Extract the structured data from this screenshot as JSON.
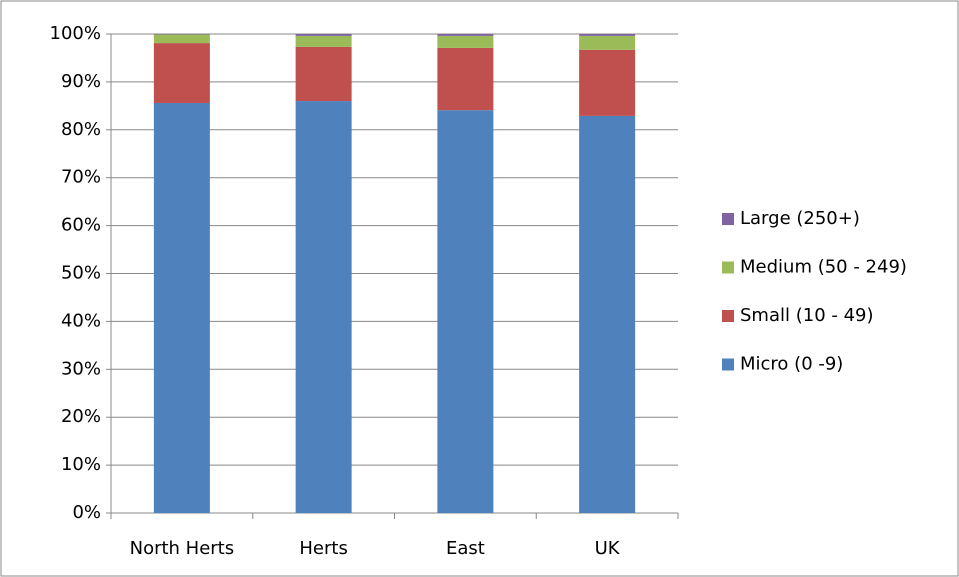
{
  "chart_data": {
    "type": "stacked_bar",
    "categories": [
      "North Herts",
      "Herts",
      "East",
      "UK"
    ],
    "series": [
      {
        "name": "Micro (0 -9)",
        "color": "#4f81bd",
        "values": [
          85.6,
          86.0,
          84.1,
          82.9
        ]
      },
      {
        "name": "Small (10 - 49)",
        "color": "#c0504d",
        "values": [
          12.5,
          11.3,
          13.0,
          13.8
        ]
      },
      {
        "name": "Medium (50 - 249)",
        "color": "#9bbb59",
        "values": [
          1.8,
          2.3,
          2.5,
          2.9
        ]
      },
      {
        "name": "Large (250+)",
        "color": "#8064a2",
        "values": [
          0.1,
          0.4,
          0.4,
          0.4
        ]
      }
    ],
    "ylim": [
      0,
      100
    ],
    "yticks": [
      {
        "value": 0,
        "label": "0%"
      },
      {
        "value": 10,
        "label": "10%"
      },
      {
        "value": 20,
        "label": "20%"
      },
      {
        "value": 30,
        "label": "30%"
      },
      {
        "value": 40,
        "label": "40%"
      },
      {
        "value": 50,
        "label": "50%"
      },
      {
        "value": 60,
        "label": "60%"
      },
      {
        "value": 70,
        "label": "70%"
      },
      {
        "value": 80,
        "label": "80%"
      },
      {
        "value": 90,
        "label": "90%"
      },
      {
        "value": 100,
        "label": "100%"
      }
    ],
    "grid": true,
    "legend": "right"
  }
}
